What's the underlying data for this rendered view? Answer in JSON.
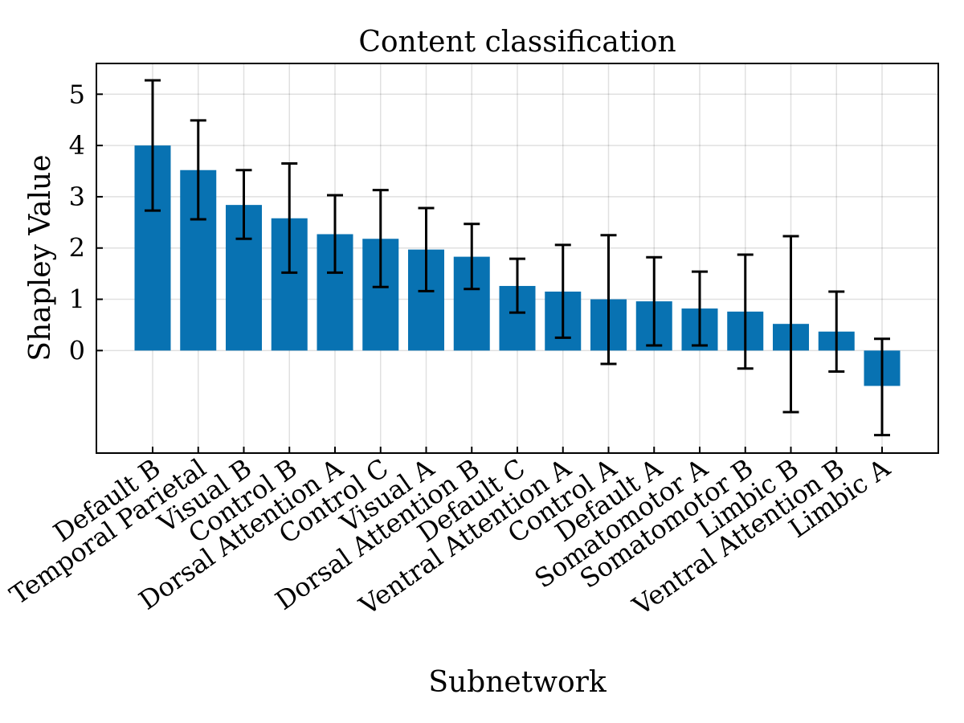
{
  "chart_data": {
    "type": "bar",
    "title": "Content classification",
    "xlabel": "Subnetwork",
    "ylabel": "Shapley Value",
    "ylim": [
      -2,
      5.6
    ],
    "yticks": [
      0,
      1,
      2,
      3,
      4,
      5
    ],
    "grid": true,
    "bar_color": "#0872b2",
    "error_color": "#000000",
    "categories": [
      "Default B",
      "Temporal Parietal",
      "Visual B",
      "Control B",
      "Dorsal Attention A",
      "Control C",
      "Visual A",
      "Dorsal Attention B",
      "Default C",
      "Ventral Attention A",
      "Control A",
      "Default A",
      "Somatomotor A",
      "Somatomotor B",
      "Limbic B",
      "Ventral Attention B",
      "Limbic A"
    ],
    "values": [
      4.0,
      3.52,
      2.84,
      2.58,
      2.27,
      2.18,
      1.97,
      1.83,
      1.26,
      1.15,
      1.0,
      0.96,
      0.82,
      0.76,
      0.52,
      0.37,
      -0.69
    ],
    "error_low": [
      2.73,
      2.56,
      2.18,
      1.52,
      1.52,
      1.24,
      1.16,
      1.2,
      0.74,
      0.25,
      -0.26,
      0.1,
      0.1,
      -0.35,
      -1.2,
      -0.41,
      -1.65
    ],
    "error_high": [
      5.27,
      4.49,
      3.52,
      3.65,
      3.03,
      3.13,
      2.78,
      2.47,
      1.79,
      2.06,
      2.25,
      1.82,
      1.54,
      1.87,
      2.23,
      1.15,
      0.23
    ]
  }
}
